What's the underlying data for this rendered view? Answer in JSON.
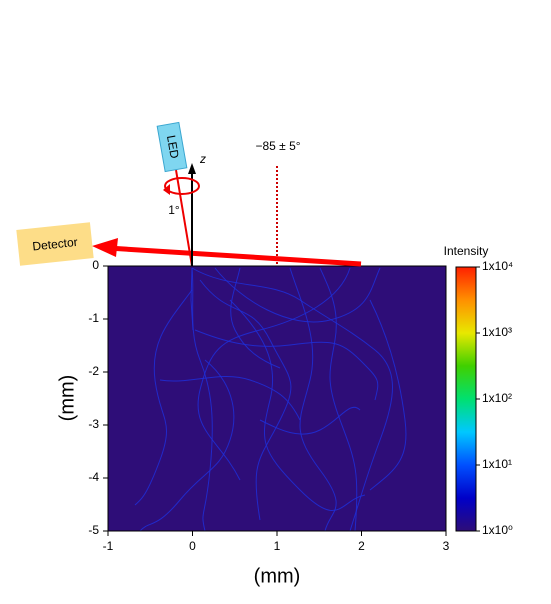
{
  "chart_data": {
    "type": "heatmap",
    "xlabel": "(mm)",
    "ylabel": "(mm)",
    "xlim": [
      -1,
      3
    ],
    "xticks": [
      -1,
      0,
      1,
      2,
      3
    ],
    "ylim": [
      -5,
      0
    ],
    "yticks": [
      0,
      -1,
      -2,
      -3,
      -4,
      -5
    ],
    "color": "#2e0d78",
    "colorbar": {
      "title": "Intensity",
      "scale": "log",
      "lim": [
        1,
        10000
      ],
      "ticks": [
        {
          "value": 1,
          "label": "1x10⁰"
        },
        {
          "value": 10,
          "label": "1x10¹"
        },
        {
          "value": 100,
          "label": "1x10²"
        },
        {
          "value": 1000,
          "label": "1x10³"
        },
        {
          "value": 10000,
          "label": "1x10⁴"
        }
      ],
      "colors": [
        "#2e0d78",
        "#0000c8",
        "#0050ff",
        "#00c8ff",
        "#00e070",
        "#40d000",
        "#e8e800",
        "#ff9000",
        "#ff2000"
      ]
    },
    "annotations": {
      "led": "LED",
      "axis": "z",
      "tilt": "1°",
      "angle": "−85 ± 5°",
      "detector": "Detector"
    }
  }
}
